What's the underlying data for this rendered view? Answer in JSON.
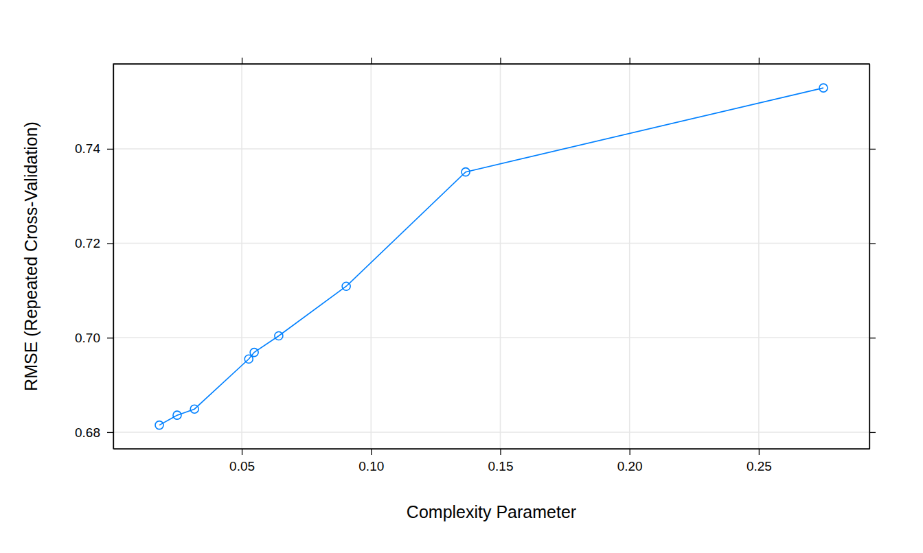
{
  "chart_data": {
    "type": "line",
    "x_label": "Complexity Parameter",
    "y_label": "RMSE (Repeated Cross-Validation)",
    "x": [
      0.0181,
      0.025,
      0.0317,
      0.0527,
      0.0548,
      0.0643,
      0.0904,
      0.1366,
      0.275
    ],
    "values": [
      0.6815,
      0.6836,
      0.6849,
      0.6955,
      0.6969,
      0.7004,
      0.7109,
      0.7351,
      0.7529
    ],
    "color": "#0080ff",
    "marker": "circle",
    "xlim": [
      0.0003,
      0.2928
    ],
    "ylim": [
      0.6765,
      0.758
    ],
    "xticks": [
      0.05,
      {
        "value": 0.1,
        "label": "0.10"
      },
      0.15,
      {
        "value": 0.2,
        "label": "0.20"
      },
      0.25
    ],
    "yticks": [
      0.68,
      {
        "value": 0.7,
        "label": "0.70"
      },
      0.72,
      0.74
    ],
    "grid": true
  }
}
